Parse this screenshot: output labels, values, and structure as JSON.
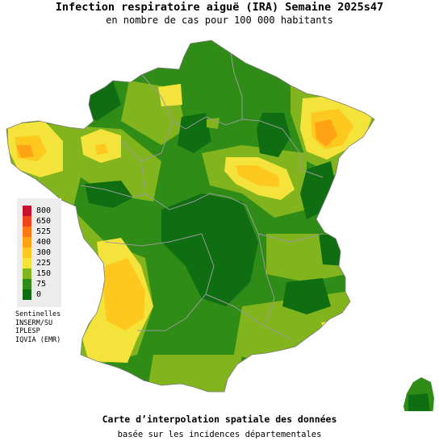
{
  "header": {
    "title": "Infection respiratoire aiguë (IRA) Semaine 2025s47",
    "subtitle": "en nombre de cas pour 100 000 habitants"
  },
  "legend": {
    "items": [
      {
        "label": "800",
        "color": "#c8102e"
      },
      {
        "label": "650",
        "color": "#f0451c"
      },
      {
        "label": "525",
        "color": "#ff7814"
      },
      {
        "label": "400",
        "color": "#ffa314"
      },
      {
        "label": "300",
        "color": "#ffc81e"
      },
      {
        "label": "225",
        "color": "#f3e33a"
      },
      {
        "label": "150",
        "color": "#82b41e"
      },
      {
        "label": "75",
        "color": "#2f8c16"
      },
      {
        "label": "0",
        "color": "#0f6e12"
      }
    ]
  },
  "sources": {
    "heading": "Sentinelles",
    "lines": [
      "INSERM/SU",
      "IPLESP",
      "IQVIA (EMR)"
    ]
  },
  "footer": {
    "line1": "Carte d’interpolation spatiale des données",
    "line2": "basée sur les incidences départementales"
  },
  "colors": {
    "low": "#0f6e12",
    "mid_low": "#2f8c16",
    "mid": "#82b41e",
    "moderate": "#f3e33a",
    "elevated": "#ffc81e",
    "high": "#ffa314",
    "very_high": "#ff7814",
    "border": "#9a9a9a"
  }
}
